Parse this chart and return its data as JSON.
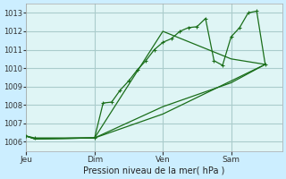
{
  "background_color": "#cceeff",
  "plot_bg_color": "#dff5f5",
  "grid_color": "#aacccc",
  "line_color": "#1a6e1a",
  "xlabel": "Pression niveau de la mer( hPa )",
  "ylim": [
    1005.5,
    1013.5
  ],
  "yticks": [
    1006,
    1007,
    1008,
    1009,
    1010,
    1011,
    1012,
    1013
  ],
  "day_labels": [
    "Jeu",
    "Dim",
    "Ven",
    "Sam"
  ],
  "day_positions": [
    0,
    48,
    96,
    144
  ],
  "series1": {
    "x": [
      0,
      6,
      48,
      54,
      60,
      66,
      72,
      78,
      84,
      90,
      96,
      102,
      108,
      114,
      120,
      126,
      132,
      138,
      144,
      150,
      156,
      162,
      168
    ],
    "y": [
      1006.3,
      1006.2,
      1006.2,
      1008.1,
      1008.15,
      1008.8,
      1009.3,
      1009.9,
      1010.4,
      1011.0,
      1011.4,
      1011.6,
      1012.0,
      1012.2,
      1012.25,
      1012.7,
      1010.4,
      1010.15,
      1011.7,
      1012.2,
      1013.0,
      1013.1,
      1010.2
    ],
    "marker": "+"
  },
  "series2": {
    "x": [
      0,
      6,
      48,
      96,
      144,
      168
    ],
    "y": [
      1006.3,
      1006.15,
      1006.2,
      1012.0,
      1010.5,
      1010.2
    ],
    "marker": null
  },
  "series3": {
    "x": [
      0,
      6,
      48,
      96,
      144,
      168
    ],
    "y": [
      1006.3,
      1006.15,
      1006.2,
      1007.9,
      1009.2,
      1010.2
    ],
    "marker": null
  },
  "series4": {
    "x": [
      0,
      6,
      48,
      96,
      168
    ],
    "y": [
      1006.3,
      1006.15,
      1006.2,
      1007.5,
      1010.2
    ],
    "marker": null
  }
}
